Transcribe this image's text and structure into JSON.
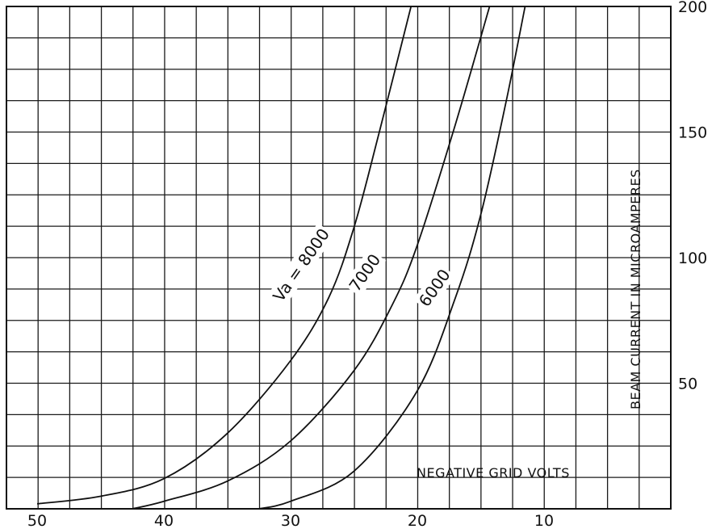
{
  "chart_data": {
    "type": "line",
    "title": "",
    "xlabel": "NEGATIVE GRID VOLTS",
    "ylabel": "BEAM CURRENT IN MICROAMPERES",
    "x_reversed": true,
    "xlim": [
      0,
      52
    ],
    "ylim": [
      0,
      200
    ],
    "x_ticks": [
      {
        "value": 50,
        "label": "50"
      },
      {
        "value": 40,
        "label": "40"
      },
      {
        "value": 30,
        "label": "30"
      },
      {
        "value": 20,
        "label": "20"
      },
      {
        "value": 10,
        "label": "10"
      }
    ],
    "y_ticks": [
      {
        "value": 200,
        "label": "200"
      },
      {
        "value": 150,
        "label": "150"
      },
      {
        "value": 100,
        "label": "100"
      },
      {
        "value": 50,
        "label": "50"
      }
    ],
    "grid": true,
    "series": [
      {
        "label": "Va = 8000",
        "label_anchor": {
          "x": 31,
          "y": 83
        },
        "x": [
          50,
          45,
          40,
          35,
          30,
          27,
          25,
          23,
          20.5
        ],
        "y": [
          2,
          5,
          12,
          30,
          59,
          84,
          112,
          150,
          200
        ]
      },
      {
        "label": "7000",
        "label_anchor": {
          "x": 25,
          "y": 87
        },
        "x": [
          42.5,
          40,
          35,
          30,
          25,
          22,
          20,
          17,
          14.3
        ],
        "y": [
          0,
          3,
          11,
          27,
          55,
          81,
          105,
          153,
          200
        ]
      },
      {
        "label": "6000",
        "label_anchor": {
          "x": 19.5,
          "y": 81
        },
        "x": [
          32.5,
          30,
          25,
          20,
          17,
          15,
          13,
          11.5
        ],
        "y": [
          0,
          3,
          15,
          47,
          84,
          117,
          162,
          200
        ]
      }
    ]
  }
}
